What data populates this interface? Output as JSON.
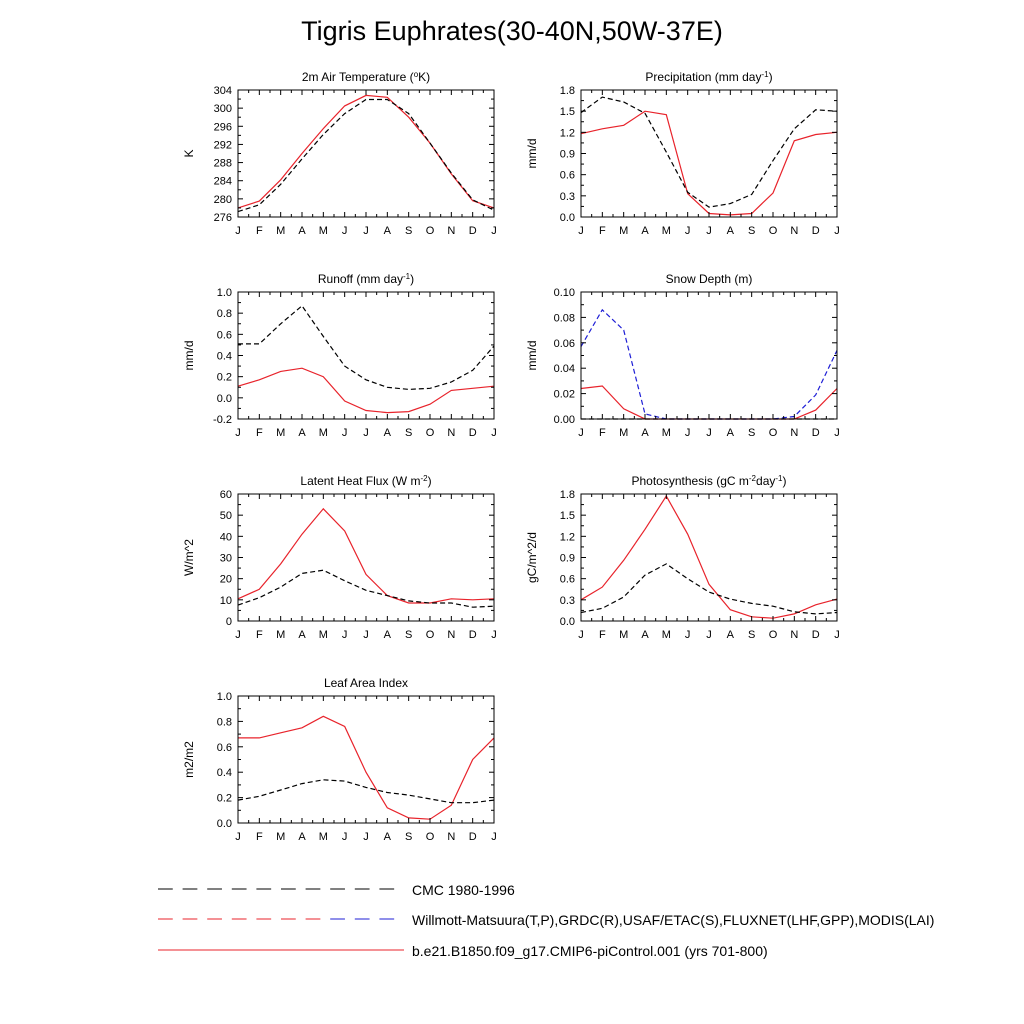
{
  "main_title": "Tigris Euphrates(30-40N,50W-37E)",
  "colors": {
    "model": "#e8232b",
    "obs": "#000000",
    "obs_snow": "#1f1fd6",
    "axis": "#000000"
  },
  "legend": [
    {
      "label": "CMC 1980-1996",
      "style": "dash",
      "colors": [
        "#000000"
      ]
    },
    {
      "label": "Willmott-Matsuura(T,P),GRDC(R),USAF/ETAC(S),FLUXNET(LHF,GPP),MODIS(LAI)",
      "style": "dash",
      "colors": [
        "#e8232b",
        "#1f1fd6"
      ]
    },
    {
      "label": "b.e21.B1850.f09_g17.CMIP6-piControl.001 (yrs 701-800)",
      "style": "solid",
      "colors": [
        "#e8232b"
      ]
    }
  ],
  "chart_data": [
    {
      "type": "line",
      "title": "2m Air Temperature (°K)",
      "title_parts": [
        {
          "t": "2m Air Temperature ("
        },
        {
          "t": "o",
          "sup": true
        },
        {
          "t": "K)"
        }
      ],
      "ylabel": "K",
      "ylim": [
        276,
        304
      ],
      "yticks": [
        276,
        280,
        284,
        288,
        292,
        296,
        300,
        304
      ],
      "ytick_labels": [
        "276",
        "280",
        "284",
        "288",
        "292",
        "296",
        "300",
        "304"
      ],
      "categories": [
        "J",
        "F",
        "M",
        "A",
        "M",
        "J",
        "J",
        "A",
        "S",
        "O",
        "N",
        "D",
        "J"
      ],
      "series": [
        {
          "name": "model",
          "style": "solid",
          "color": "#e8232b",
          "values": [
            278.0,
            279.5,
            284.2,
            290.0,
            295.5,
            300.5,
            302.8,
            302.4,
            298.0,
            292.3,
            285.5,
            279.6,
            278.0
          ]
        },
        {
          "name": "observed",
          "style": "dash",
          "color": "#000000",
          "values": [
            277.2,
            278.7,
            283.2,
            288.8,
            294.2,
            298.8,
            301.9,
            301.9,
            298.8,
            292.3,
            285.7,
            279.8,
            277.5
          ]
        }
      ]
    },
    {
      "type": "line",
      "title": "Precipitation (mm day-1)",
      "title_parts": [
        {
          "t": "Precipitation (mm day"
        },
        {
          "t": "-1",
          "sup": true
        },
        {
          "t": ")"
        }
      ],
      "ylabel": "mm/d",
      "ylim": [
        0,
        1.8
      ],
      "yticks": [
        0,
        0.3,
        0.6,
        0.9,
        1.2,
        1.5,
        1.8
      ],
      "ytick_labels": [
        "0.0",
        "0.3",
        "0.6",
        "0.9",
        "1.2",
        "1.5",
        "1.8"
      ],
      "categories": [
        "J",
        "F",
        "M",
        "A",
        "M",
        "J",
        "J",
        "A",
        "S",
        "O",
        "N",
        "D",
        "J"
      ],
      "series": [
        {
          "name": "model",
          "style": "solid",
          "color": "#e8232b",
          "values": [
            1.18,
            1.25,
            1.3,
            1.5,
            1.45,
            0.33,
            0.05,
            0.03,
            0.05,
            0.34,
            1.08,
            1.17,
            1.2
          ]
        },
        {
          "name": "observed",
          "style": "dash",
          "color": "#000000",
          "values": [
            1.48,
            1.7,
            1.63,
            1.47,
            0.92,
            0.35,
            0.14,
            0.19,
            0.32,
            0.8,
            1.25,
            1.52,
            1.5
          ]
        }
      ]
    },
    {
      "type": "line",
      "title": "Runoff (mm day-1)",
      "title_parts": [
        {
          "t": "Runoff (mm day"
        },
        {
          "t": "-1",
          "sup": true
        },
        {
          "t": ")"
        }
      ],
      "ylabel": "mm/d",
      "ylim": [
        -0.2,
        1.0
      ],
      "yticks": [
        -0.2,
        0,
        0.2,
        0.4,
        0.6,
        0.8,
        1.0
      ],
      "ytick_labels": [
        "-0.2",
        "0.0",
        "0.2",
        "0.4",
        "0.6",
        "0.8",
        "1.0"
      ],
      "categories": [
        "J",
        "F",
        "M",
        "A",
        "M",
        "J",
        "J",
        "A",
        "S",
        "O",
        "N",
        "D",
        "J"
      ],
      "series": [
        {
          "name": "model",
          "style": "solid",
          "color": "#e8232b",
          "values": [
            0.11,
            0.17,
            0.25,
            0.28,
            0.2,
            -0.03,
            -0.12,
            -0.14,
            -0.13,
            -0.06,
            0.07,
            0.09,
            0.11
          ]
        },
        {
          "name": "observed",
          "style": "dash",
          "color": "#000000",
          "values": [
            0.51,
            0.51,
            0.7,
            0.87,
            0.58,
            0.3,
            0.17,
            0.1,
            0.08,
            0.09,
            0.15,
            0.26,
            0.49
          ]
        }
      ]
    },
    {
      "type": "line",
      "title": "Snow Depth (m)",
      "title_parts": [
        {
          "t": "Snow Depth (m)"
        }
      ],
      "ylabel": "mm/d",
      "ylim": [
        0,
        0.1
      ],
      "yticks": [
        0,
        0.02,
        0.04,
        0.06,
        0.08,
        0.1
      ],
      "ytick_labels": [
        "0.00",
        "0.02",
        "0.04",
        "0.06",
        "0.08",
        "0.10"
      ],
      "categories": [
        "J",
        "F",
        "M",
        "A",
        "M",
        "J",
        "J",
        "A",
        "S",
        "O",
        "N",
        "D",
        "J"
      ],
      "series": [
        {
          "name": "model",
          "style": "solid",
          "color": "#e8232b",
          "values": [
            0.024,
            0.026,
            0.008,
            0.0,
            0.0,
            0.0,
            0.0,
            0.0,
            0.0,
            0.0,
            0.0,
            0.007,
            0.024
          ]
        },
        {
          "name": "observed-usaf",
          "style": "dash",
          "color": "#1f1fd6",
          "values": [
            0.057,
            0.086,
            0.07,
            0.004,
            0.0,
            0.0,
            0.0,
            0.0,
            0.0,
            0.0,
            0.002,
            0.019,
            0.054
          ]
        },
        {
          "name": "cmc",
          "style": "dash",
          "color": "#000000",
          "values": [
            0.0,
            0.0,
            0.0,
            0.0,
            0.0,
            0.0,
            0.0,
            0.0,
            0.0,
            0.0,
            0.0,
            0.0,
            0.0
          ]
        }
      ]
    },
    {
      "type": "line",
      "title": "Latent Heat Flux (W m-2)",
      "title_parts": [
        {
          "t": "Latent Heat Flux (W m"
        },
        {
          "t": "-2",
          "sup": true
        },
        {
          "t": ")"
        }
      ],
      "ylabel": "W/m^2",
      "ylim": [
        0,
        60
      ],
      "yticks": [
        0,
        10,
        20,
        30,
        40,
        50,
        60
      ],
      "ytick_labels": [
        "0",
        "10",
        "20",
        "30",
        "40",
        "50",
        "60"
      ],
      "categories": [
        "J",
        "F",
        "M",
        "A",
        "M",
        "J",
        "J",
        "A",
        "S",
        "O",
        "N",
        "D",
        "J"
      ],
      "series": [
        {
          "name": "model",
          "style": "solid",
          "color": "#e8232b",
          "values": [
            10.5,
            15.0,
            27.0,
            41.0,
            53.0,
            42.5,
            22.0,
            12.0,
            8.5,
            8.5,
            10.5,
            10.0,
            10.5
          ]
        },
        {
          "name": "observed",
          "style": "dash",
          "color": "#000000",
          "values": [
            7.5,
            11.0,
            16.0,
            22.5,
            24.0,
            19.0,
            14.5,
            12.0,
            9.5,
            8.5,
            8.5,
            6.5,
            7.0
          ]
        }
      ]
    },
    {
      "type": "line",
      "title": "Photosynthesis (gC m-2day-1)",
      "title_parts": [
        {
          "t": "Photosynthesis (gC m"
        },
        {
          "t": "-2",
          "sup": true
        },
        {
          "t": "day"
        },
        {
          "t": "-1",
          "sup": true
        },
        {
          "t": ")"
        }
      ],
      "ylabel": "gC/m^2/d",
      "ylim": [
        0,
        1.8
      ],
      "yticks": [
        0,
        0.3,
        0.6,
        0.9,
        1.2,
        1.5,
        1.8
      ],
      "ytick_labels": [
        "0.0",
        "0.3",
        "0.6",
        "0.9",
        "1.2",
        "1.5",
        "1.8"
      ],
      "categories": [
        "J",
        "F",
        "M",
        "A",
        "M",
        "J",
        "J",
        "A",
        "S",
        "O",
        "N",
        "D",
        "J"
      ],
      "series": [
        {
          "name": "model",
          "style": "solid",
          "color": "#e8232b",
          "values": [
            0.3,
            0.48,
            0.86,
            1.3,
            1.77,
            1.23,
            0.52,
            0.16,
            0.06,
            0.04,
            0.1,
            0.23,
            0.31
          ]
        },
        {
          "name": "observed",
          "style": "dash",
          "color": "#000000",
          "values": [
            0.12,
            0.18,
            0.34,
            0.65,
            0.81,
            0.6,
            0.41,
            0.31,
            0.25,
            0.21,
            0.13,
            0.1,
            0.12
          ]
        }
      ]
    },
    {
      "type": "line",
      "title": "Leaf Area Index",
      "title_parts": [
        {
          "t": "Leaf Area Index"
        }
      ],
      "ylabel": "m2/m2",
      "ylim": [
        0,
        1.0
      ],
      "yticks": [
        0,
        0.2,
        0.4,
        0.6,
        0.8,
        1.0
      ],
      "ytick_labels": [
        "0.0",
        "0.2",
        "0.4",
        "0.6",
        "0.8",
        "1.0"
      ],
      "categories": [
        "J",
        "F",
        "M",
        "A",
        "M",
        "J",
        "J",
        "A",
        "S",
        "O",
        "N",
        "D",
        "J"
      ],
      "series": [
        {
          "name": "model",
          "style": "solid",
          "color": "#e8232b",
          "values": [
            0.67,
            0.67,
            0.71,
            0.75,
            0.84,
            0.76,
            0.4,
            0.12,
            0.04,
            0.03,
            0.14,
            0.5,
            0.67
          ]
        },
        {
          "name": "observed",
          "style": "dash",
          "color": "#000000",
          "values": [
            0.18,
            0.21,
            0.26,
            0.31,
            0.34,
            0.33,
            0.28,
            0.24,
            0.22,
            0.19,
            0.16,
            0.16,
            0.18
          ]
        }
      ]
    }
  ]
}
